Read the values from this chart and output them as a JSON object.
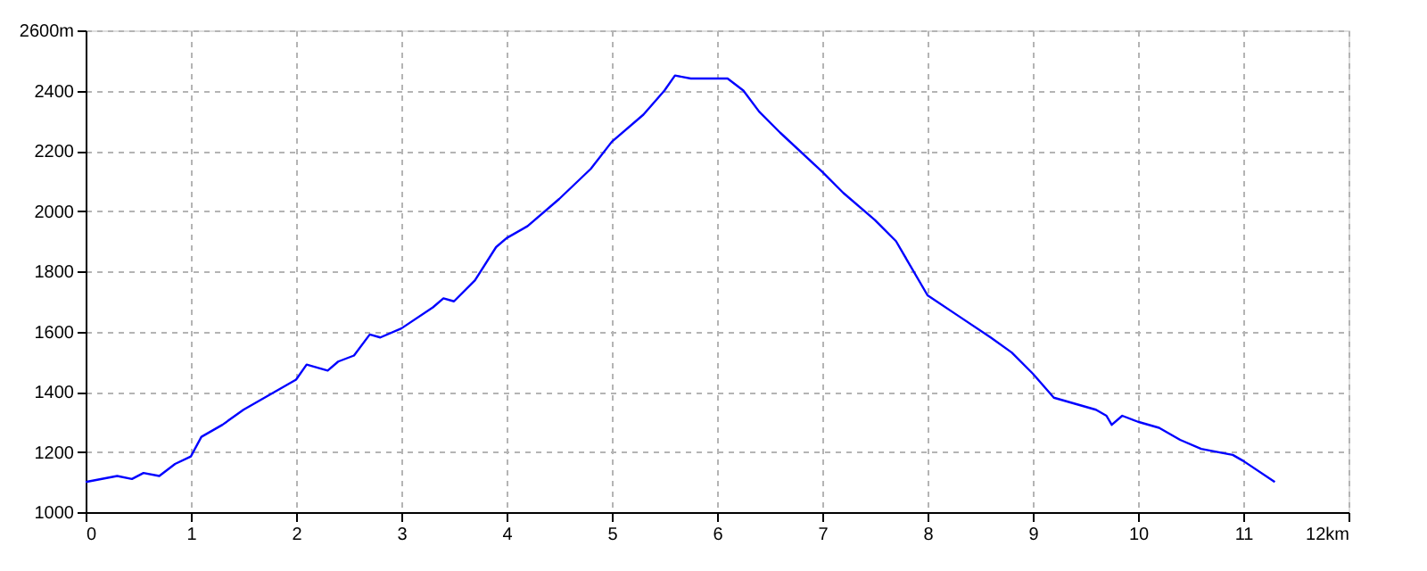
{
  "chart_data": {
    "type": "line",
    "x": [
      0,
      0.3,
      0.44,
      0.55,
      0.7,
      0.85,
      1.0,
      1.1,
      1.3,
      1.5,
      2.0,
      2.1,
      2.3,
      2.4,
      2.55,
      2.7,
      2.8,
      3.0,
      3.3,
      3.4,
      3.5,
      3.7,
      3.9,
      4.0,
      4.2,
      4.5,
      4.8,
      5.0,
      5.3,
      5.5,
      5.6,
      5.75,
      6.0,
      6.1,
      6.25,
      6.4,
      6.6,
      7.0,
      7.2,
      7.5,
      7.7,
      8.0,
      8.3,
      8.6,
      8.8,
      9.0,
      9.2,
      9.4,
      9.6,
      9.7,
      9.75,
      9.85,
      10.0,
      10.2,
      10.4,
      10.6,
      10.9,
      11.0,
      11.3
    ],
    "series": [
      {
        "color": "#0000ff",
        "values": [
          1100,
          1120,
          1110,
          1130,
          1120,
          1160,
          1185,
          1250,
          1290,
          1340,
          1440,
          1490,
          1470,
          1500,
          1520,
          1590,
          1580,
          1610,
          1680,
          1710,
          1700,
          1770,
          1880,
          1910,
          1950,
          2040,
          2140,
          2230,
          2320,
          2400,
          2450,
          2440,
          2440,
          2440,
          2400,
          2330,
          2260,
          2130,
          2060,
          1970,
          1900,
          1720,
          1650,
          1580,
          1530,
          1460,
          1380,
          1360,
          1340,
          1320,
          1290,
          1320,
          1300,
          1280,
          1240,
          1210,
          1190,
          1170,
          1100
        ]
      }
    ],
    "xlim": [
      0,
      12
    ],
    "xticks": [
      0,
      1,
      2,
      3,
      4,
      5,
      6,
      7,
      8,
      9,
      10,
      11,
      {
        "value": 12,
        "label": "12km"
      }
    ],
    "ylim": [
      1000,
      2600
    ],
    "yticks": [
      1000,
      1200,
      1400,
      1600,
      1800,
      2000,
      2200,
      2400,
      {
        "value": 2600,
        "label": "2600m"
      }
    ],
    "grid": true,
    "line_style": "solid",
    "marker": "none"
  }
}
